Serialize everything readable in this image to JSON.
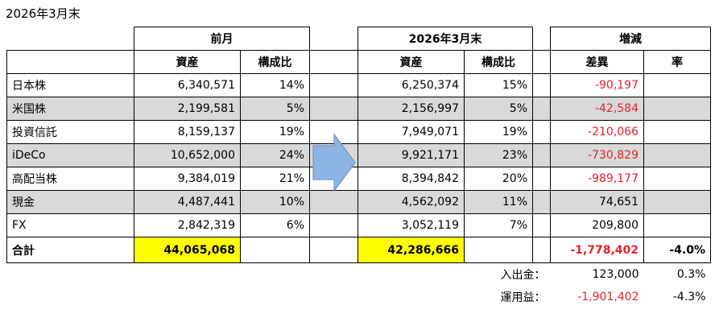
{
  "caption": "2026年3月末",
  "groups": {
    "prev": "前月",
    "curr": "2026年3月末",
    "change": "増減"
  },
  "columns": {
    "asset": "資産",
    "ratio": "構成比",
    "diff": "差異",
    "rate": "率"
  },
  "rows": [
    {
      "label": "日本株",
      "prev_asset": "6,340,571",
      "prev_ratio": "14%",
      "curr_asset": "6,250,374",
      "curr_ratio": "15%",
      "diff": "-90,197",
      "rate": ""
    },
    {
      "label": "米国株",
      "prev_asset": "2,199,581",
      "prev_ratio": "5%",
      "curr_asset": "2,156,997",
      "curr_ratio": "5%",
      "diff": "-42,584",
      "rate": ""
    },
    {
      "label": "投資信託",
      "prev_asset": "8,159,137",
      "prev_ratio": "19%",
      "curr_asset": "7,949,071",
      "curr_ratio": "19%",
      "diff": "-210,066",
      "rate": ""
    },
    {
      "label": "iDeCo",
      "prev_asset": "10,652,000",
      "prev_ratio": "24%",
      "curr_asset": "9,921,171",
      "curr_ratio": "23%",
      "diff": "-730,829",
      "rate": ""
    },
    {
      "label": "高配当株",
      "prev_asset": "9,384,019",
      "prev_ratio": "21%",
      "curr_asset": "8,394,842",
      "curr_ratio": "20%",
      "diff": "-989,177",
      "rate": ""
    },
    {
      "label": "現金",
      "prev_asset": "4,487,441",
      "prev_ratio": "10%",
      "curr_asset": "4,562,092",
      "curr_ratio": "11%",
      "diff": "74,651",
      "rate": ""
    },
    {
      "label": "FX",
      "prev_asset": "2,842,319",
      "prev_ratio": "6%",
      "curr_asset": "3,052,119",
      "curr_ratio": "7%",
      "diff": "209,800",
      "rate": ""
    }
  ],
  "total": {
    "label": "合計",
    "prev_asset": "44,065,068",
    "curr_asset": "42,286,666",
    "diff": "-1,778,402",
    "rate": "-4.0%"
  },
  "footer": [
    {
      "label": "入出金：",
      "value": "123,000",
      "rate": "0.3%"
    },
    {
      "label": "運用益：",
      "value": "-1,901,402",
      "rate": "-4.3%"
    }
  ],
  "colors": {
    "negative": "#e8212b",
    "highlight": "#ffff00",
    "row_shade": "#d9d9d9",
    "arrow_fill": "#8eb4e3",
    "arrow_stroke": "#7096c8"
  }
}
